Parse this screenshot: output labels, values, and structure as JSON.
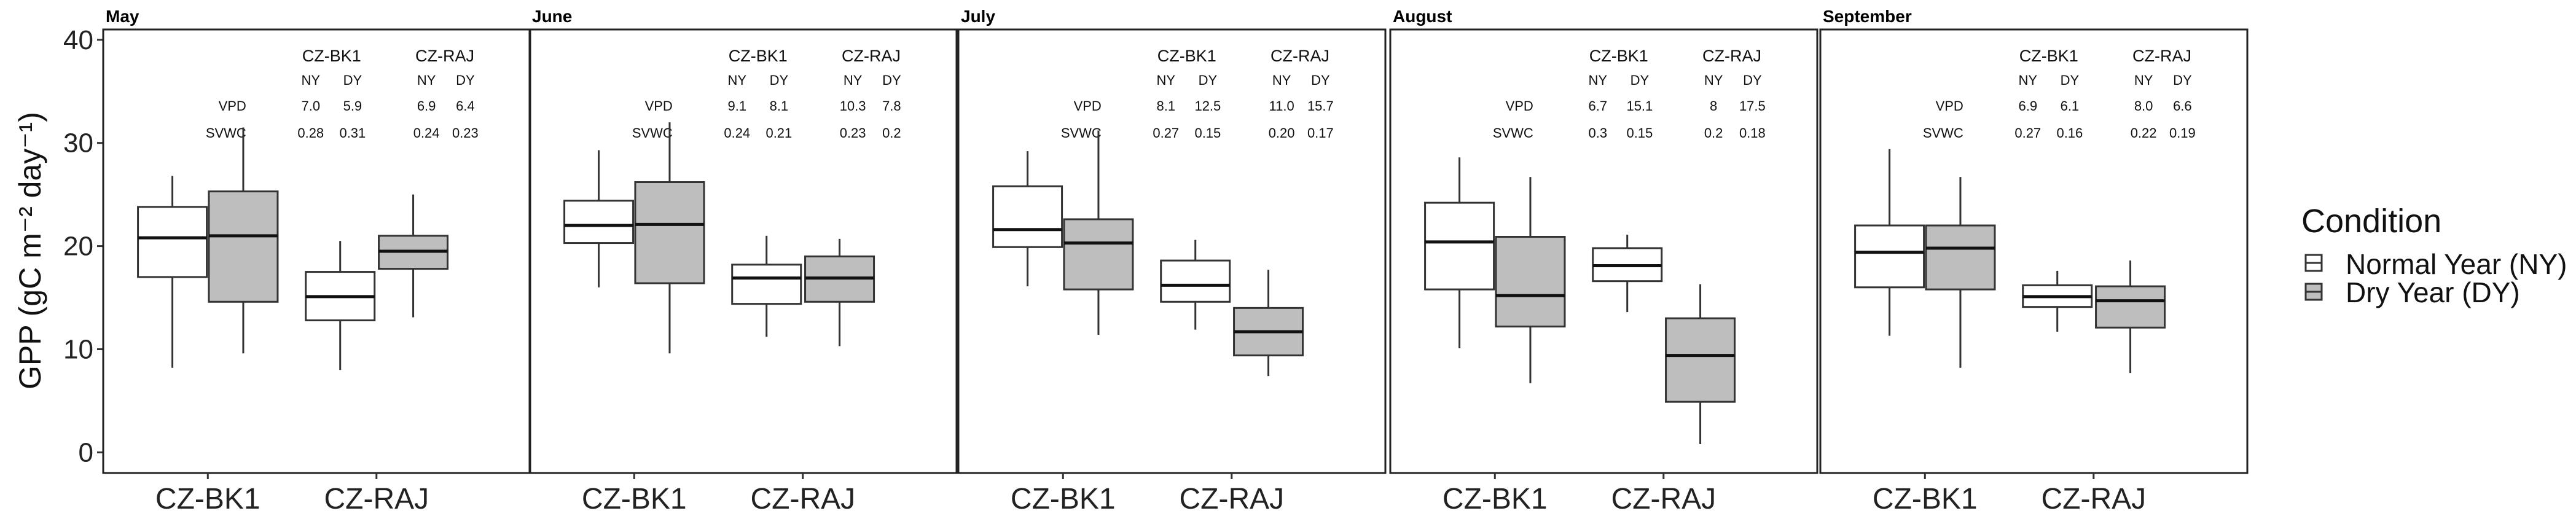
{
  "chart_data": {
    "type": "boxplot",
    "ylabel": "GPP (gC m⁻² day⁻¹)",
    "ylim": [
      -2,
      41
    ],
    "yticks": [
      "0",
      "10",
      "20",
      "30",
      "40"
    ],
    "ytick_values": [
      0,
      10,
      20,
      30,
      40
    ],
    "sites": [
      "CZ-BK1",
      "CZ-RAJ"
    ],
    "legend": {
      "title": "Condition",
      "entries": [
        {
          "name": "Normal Year (NY)",
          "color": "#ffffff"
        },
        {
          "name": "Dry Year (DY)",
          "color": "#bebebe"
        }
      ]
    },
    "table_sub_headers": [
      "NY",
      "DY"
    ],
    "table_rows": [
      "VPD",
      "SVWC"
    ],
    "panels": [
      {
        "month": "May",
        "boxes": [
          {
            "site": "CZ-BK1",
            "condition": "NY",
            "min": 8.2,
            "q1": 17.0,
            "median": 20.8,
            "q3": 23.8,
            "max": 26.8
          },
          {
            "site": "CZ-BK1",
            "condition": "DY",
            "min": 9.6,
            "q1": 14.6,
            "median": 21.0,
            "q3": 25.3,
            "max": 31.5
          },
          {
            "site": "CZ-RAJ",
            "condition": "NY",
            "min": 8.0,
            "q1": 12.8,
            "median": 15.1,
            "q3": 17.5,
            "max": 20.5
          },
          {
            "site": "CZ-RAJ",
            "condition": "DY",
            "min": 13.1,
            "q1": 17.8,
            "median": 19.5,
            "q3": 21.0,
            "max": 25.0
          }
        ],
        "table": {
          "VPD": [
            "7.0",
            "5.9",
            "6.9",
            "6.4"
          ],
          "SVWC": [
            "0.28",
            "0.31",
            "0.24",
            "0.23"
          ]
        }
      },
      {
        "month": "June",
        "boxes": [
          {
            "site": "CZ-BK1",
            "condition": "NY",
            "min": 16.0,
            "q1": 20.3,
            "median": 22.0,
            "q3": 24.4,
            "max": 29.3
          },
          {
            "site": "CZ-BK1",
            "condition": "DY",
            "min": 9.6,
            "q1": 16.4,
            "median": 22.1,
            "q3": 26.2,
            "max": 32.0
          },
          {
            "site": "CZ-RAJ",
            "condition": "NY",
            "min": 11.2,
            "q1": 14.4,
            "median": 16.9,
            "q3": 18.2,
            "max": 21.0
          },
          {
            "site": "CZ-RAJ",
            "condition": "DY",
            "min": 10.3,
            "q1": 14.6,
            "median": 16.9,
            "q3": 19.0,
            "max": 20.7
          }
        ],
        "table": {
          "VPD": [
            "9.1",
            "8.1",
            "10.3",
            "7.8"
          ],
          "SVWC": [
            "0.24",
            "0.21",
            "0.23",
            "0.2"
          ]
        }
      },
      {
        "month": "July",
        "boxes": [
          {
            "site": "CZ-BK1",
            "condition": "NY",
            "min": 16.1,
            "q1": 19.9,
            "median": 21.6,
            "q3": 25.8,
            "max": 29.2
          },
          {
            "site": "CZ-BK1",
            "condition": "DY",
            "min": 11.4,
            "q1": 15.8,
            "median": 20.3,
            "q3": 22.6,
            "max": 31.2
          },
          {
            "site": "CZ-RAJ",
            "condition": "NY",
            "min": 11.9,
            "q1": 14.6,
            "median": 16.2,
            "q3": 18.6,
            "max": 20.6
          },
          {
            "site": "CZ-RAJ",
            "condition": "DY",
            "min": 7.4,
            "q1": 9.4,
            "median": 11.7,
            "q3": 14.0,
            "max": 17.7
          }
        ],
        "table": {
          "VPD": [
            "8.1",
            "12.5",
            "11.0",
            "15.7"
          ],
          "SVWC": [
            "0.27",
            "0.15",
            "0.20",
            "0.17"
          ]
        }
      },
      {
        "month": "August",
        "boxes": [
          {
            "site": "CZ-BK1",
            "condition": "NY",
            "min": 10.1,
            "q1": 15.8,
            "median": 20.4,
            "q3": 24.2,
            "max": 28.6
          },
          {
            "site": "CZ-BK1",
            "condition": "DY",
            "min": 6.7,
            "q1": 12.2,
            "median": 15.2,
            "q3": 20.9,
            "max": 26.7
          },
          {
            "site": "CZ-RAJ",
            "condition": "NY",
            "min": 13.6,
            "q1": 16.6,
            "median": 18.1,
            "q3": 19.8,
            "max": 21.1
          },
          {
            "site": "CZ-RAJ",
            "condition": "DY",
            "min": 0.8,
            "q1": 4.9,
            "median": 9.4,
            "q3": 13.0,
            "max": 16.3
          }
        ],
        "table": {
          "VPD": [
            "6.7",
            "15.1",
            "8",
            "17.5"
          ],
          "SVWC": [
            "0.3",
            "0.15",
            "0.2",
            "0.18"
          ]
        }
      },
      {
        "month": "September",
        "boxes": [
          {
            "site": "CZ-BK1",
            "condition": "NY",
            "min": 11.3,
            "q1": 16.0,
            "median": 19.4,
            "q3": 22.0,
            "max": 29.4
          },
          {
            "site": "CZ-BK1",
            "condition": "DY",
            "min": 8.2,
            "q1": 15.8,
            "median": 19.8,
            "q3": 22.0,
            "max": 26.7
          },
          {
            "site": "CZ-RAJ",
            "condition": "NY",
            "min": 11.7,
            "q1": 14.1,
            "median": 15.1,
            "q3": 16.2,
            "max": 17.6
          },
          {
            "site": "CZ-RAJ",
            "condition": "DY",
            "min": 7.7,
            "q1": 12.1,
            "median": 14.7,
            "q3": 16.1,
            "max": 18.6
          }
        ],
        "table": {
          "VPD": [
            "6.9",
            "6.1",
            "8.0",
            "6.6"
          ],
          "SVWC": [
            "0.27",
            "0.16",
            "0.22",
            "0.19"
          ]
        }
      }
    ]
  }
}
